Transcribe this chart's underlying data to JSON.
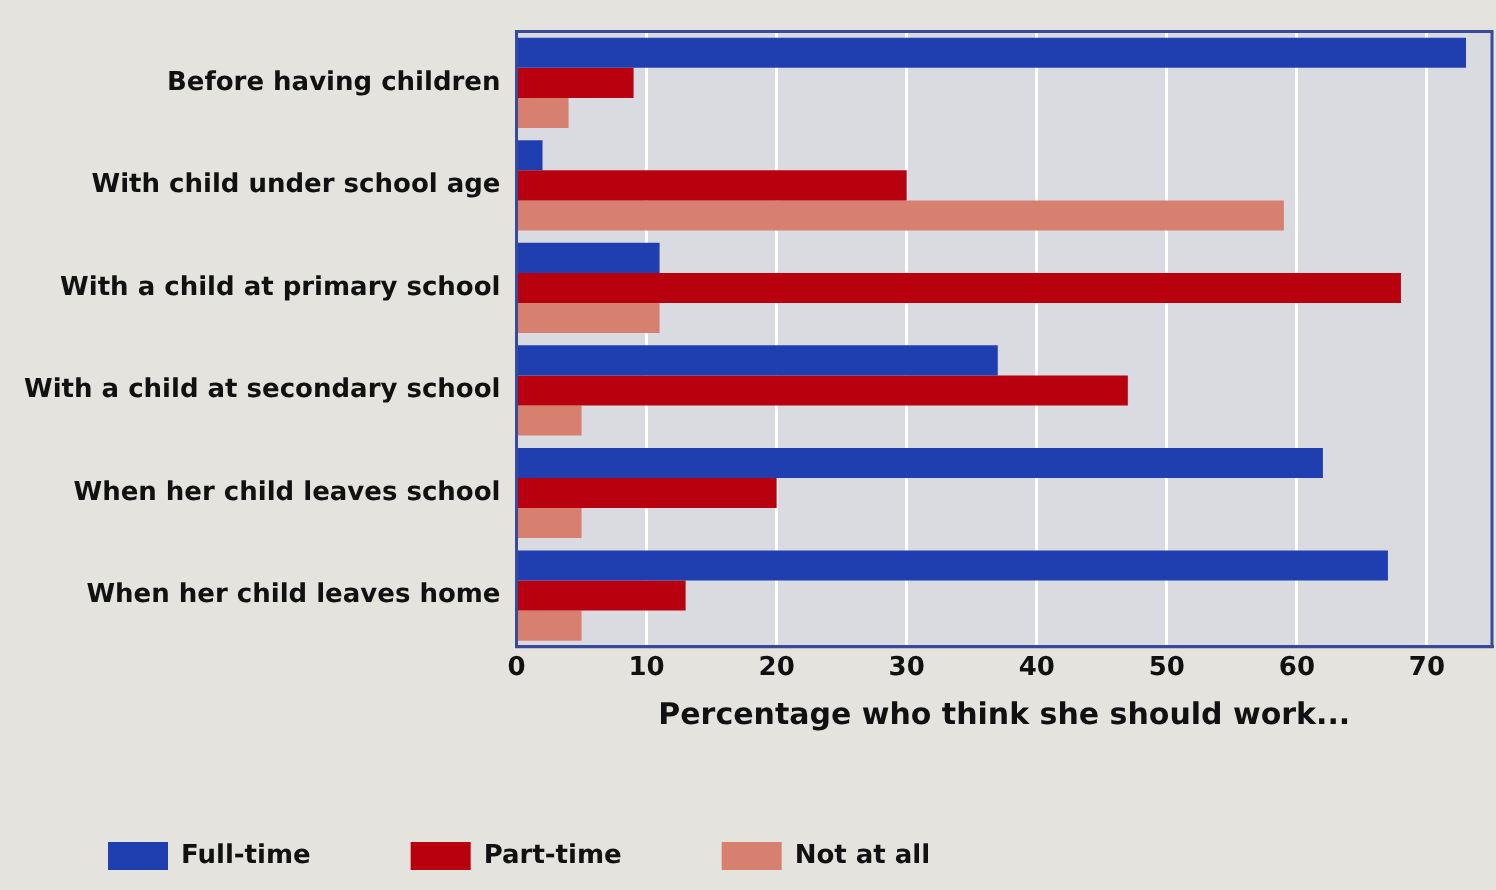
{
  "chart_data": {
    "type": "bar",
    "orientation": "horizontal",
    "xlabel": "Percentage who think she should work...",
    "categories": [
      "Before having children",
      "With child under school age",
      "With a child at primary school",
      "With a child at secondary school",
      "When her child leaves school",
      "When her child leaves home"
    ],
    "series": [
      {
        "name": "Full-time",
        "color": "#1f3fb0",
        "values": [
          73,
          2,
          11,
          37,
          62,
          67
        ]
      },
      {
        "name": "Part-time",
        "color": "#b8000e",
        "values": [
          9,
          30,
          68,
          47,
          20,
          13
        ]
      },
      {
        "name": "Not at all",
        "color": "#d88070",
        "values": [
          4,
          59,
          11,
          5,
          5,
          5
        ]
      }
    ],
    "xlim": [
      0,
      75
    ],
    "xticks": [
      0,
      10,
      20,
      30,
      40,
      50,
      60,
      70
    ],
    "grid": "x",
    "legend": "bottom"
  }
}
